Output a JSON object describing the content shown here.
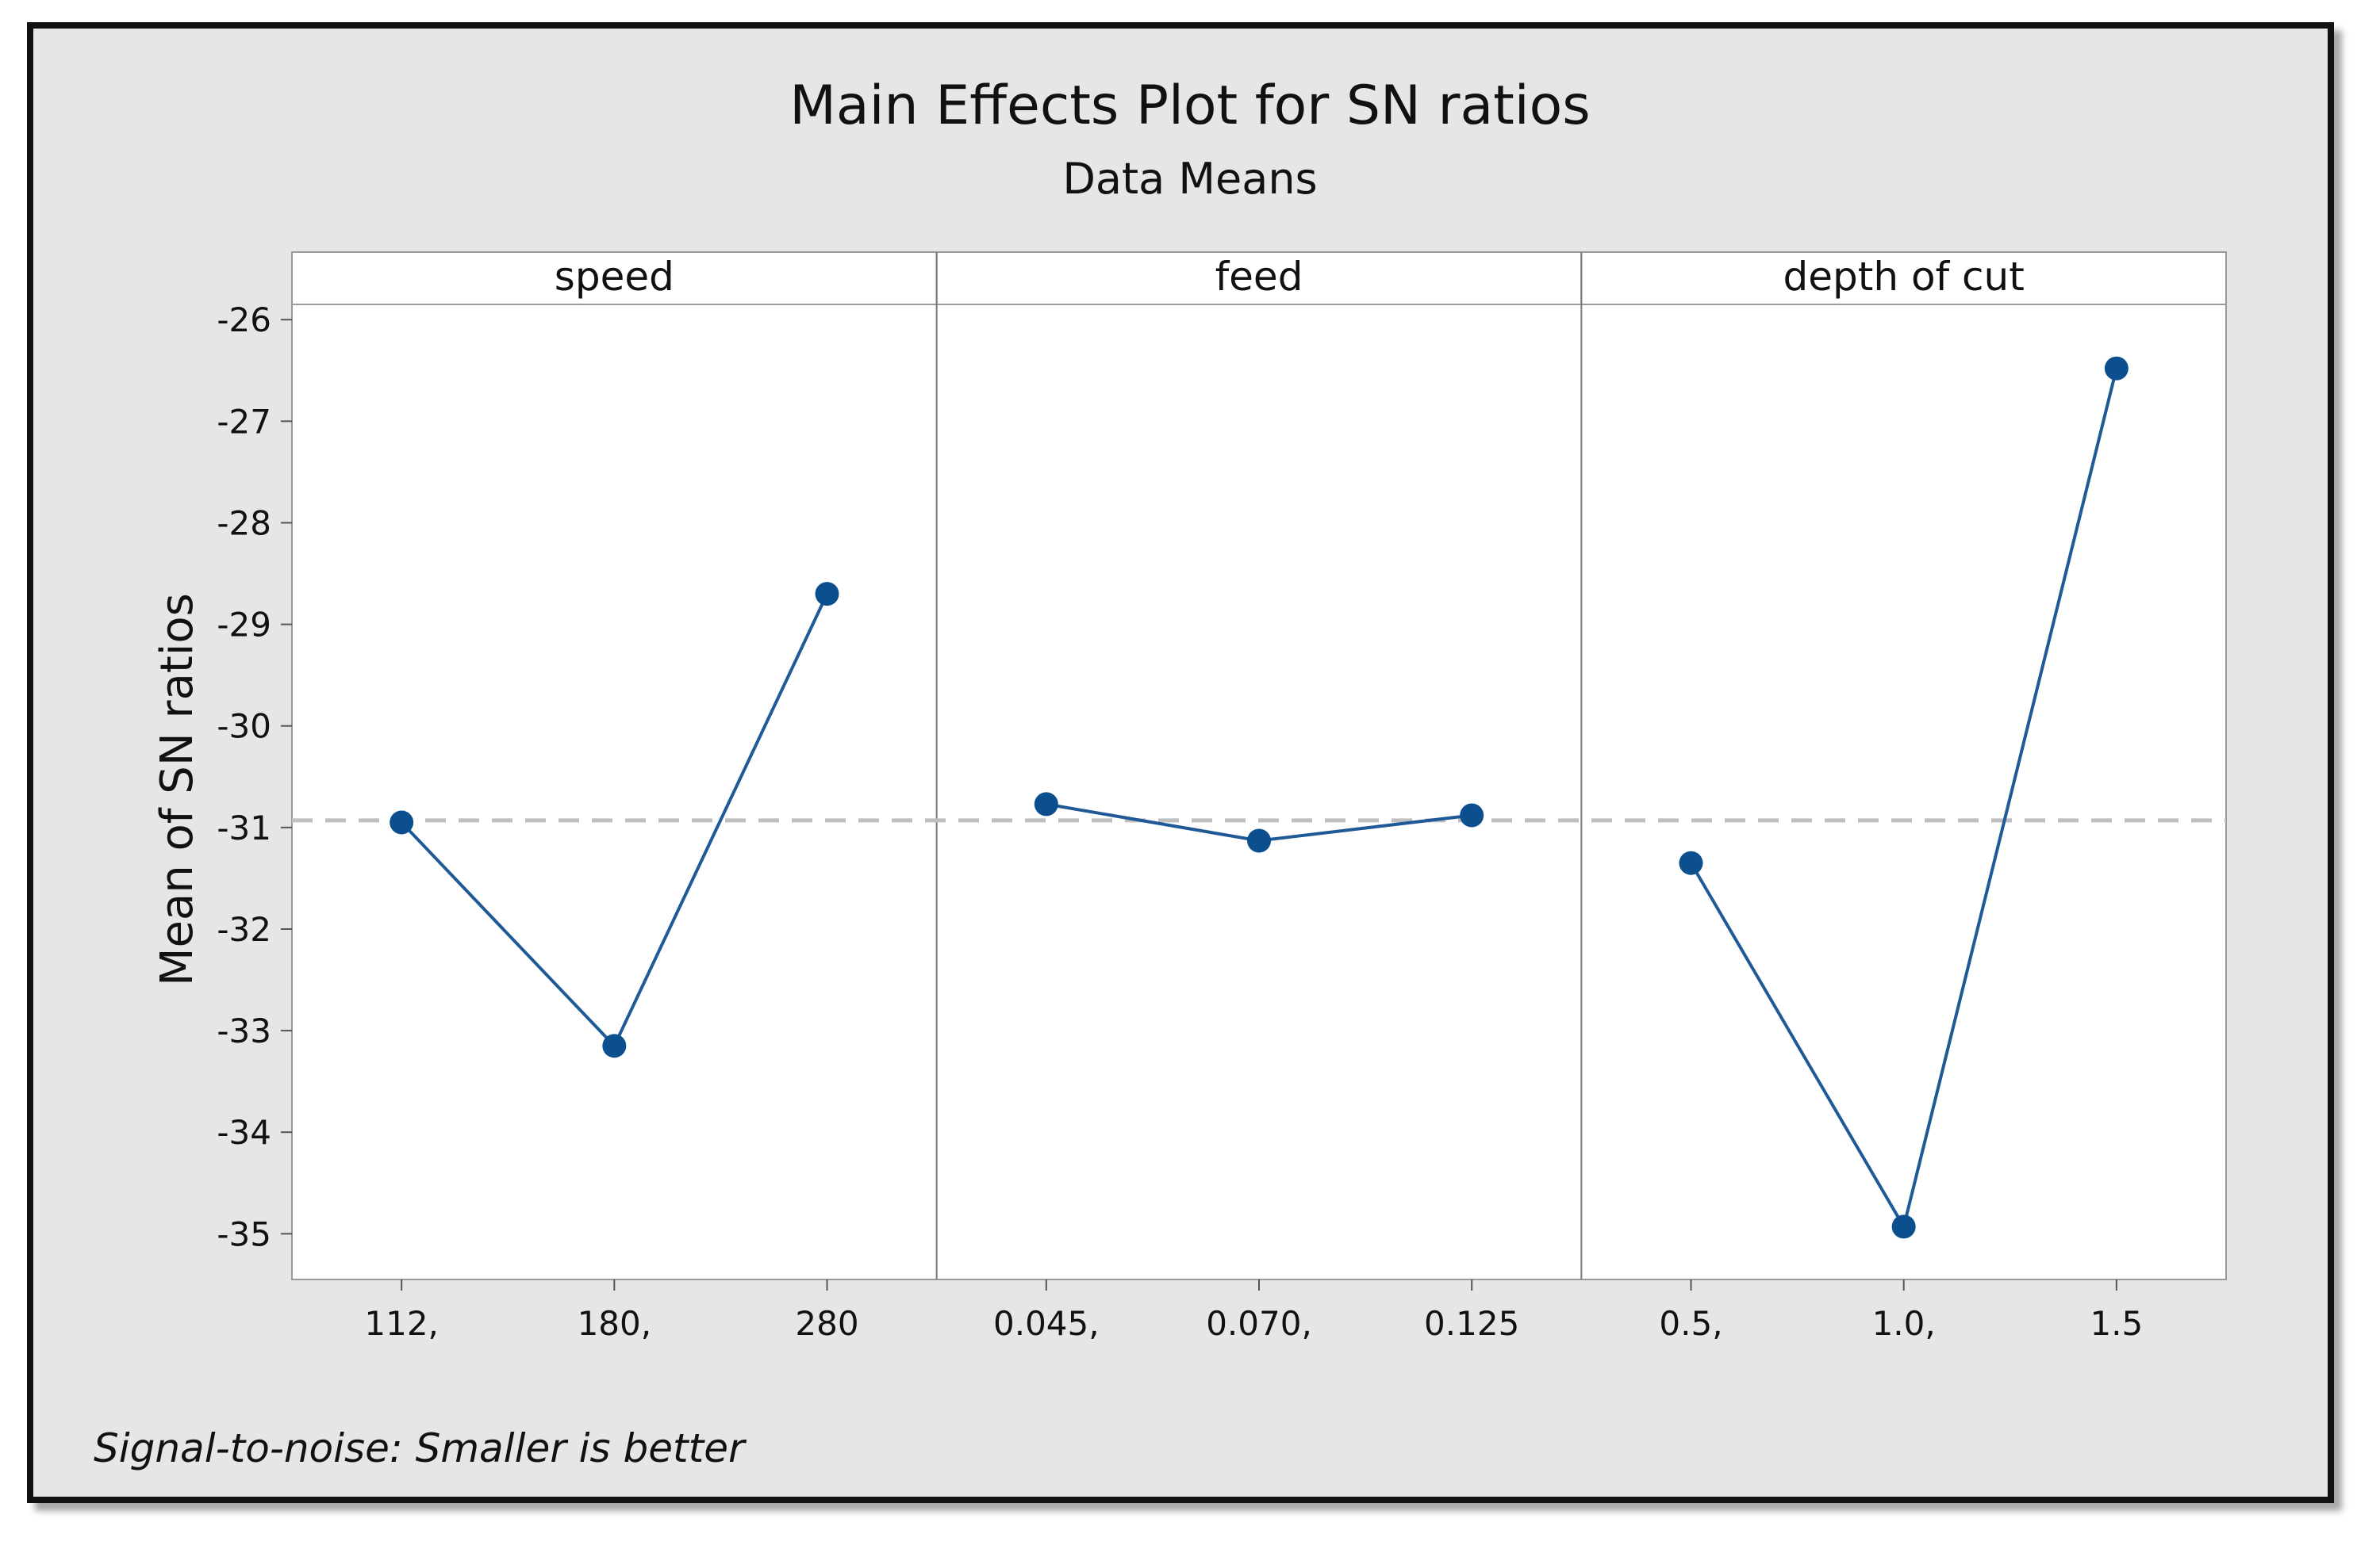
{
  "chart_data": {
    "type": "line",
    "title": "Main Effects Plot for SN ratios",
    "subtitle": "Data Means",
    "ylabel": "Mean of SN ratios",
    "ylim": [
      -35.45,
      -25.85
    ],
    "yticks": [
      -26,
      -27,
      -28,
      -29,
      -30,
      -31,
      -32,
      -33,
      -34,
      -35
    ],
    "reference_mean": -30.93,
    "footnote": "Signal-to-noise: Smaller is better",
    "series_color": "#1f5a96",
    "marker_color": "#0b4f8f",
    "reference_color": "#bfbfbf",
    "panels": [
      {
        "name": "speed",
        "categories": [
          "112,",
          "180,",
          "280"
        ],
        "values": [
          -30.95,
          -33.15,
          -28.7
        ]
      },
      {
        "name": "feed",
        "categories": [
          "0.045,",
          "0.070,",
          "0.125"
        ],
        "values": [
          -30.77,
          -31.13,
          -30.88
        ]
      },
      {
        "name": "depth of cut",
        "categories": [
          "0.5,",
          "1.0,",
          "1.5"
        ],
        "values": [
          -31.35,
          -34.93,
          -26.48
        ]
      }
    ]
  }
}
